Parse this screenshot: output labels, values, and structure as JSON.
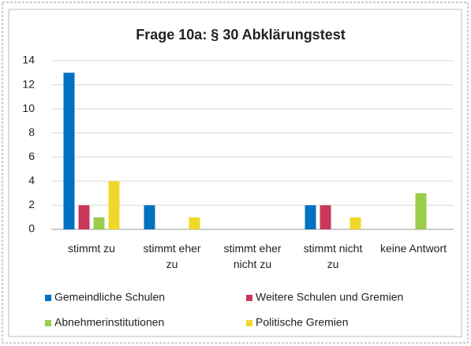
{
  "chart_data": {
    "type": "bar",
    "title": "Frage 10a: § 30 Abklärungstest",
    "categories": [
      "stimmt zu",
      "stimmt eher zu",
      "stimmt eher nicht zu",
      "stimmt nicht zu",
      "keine Antwort"
    ],
    "series": [
      {
        "name": "Gemeindliche Schulen",
        "color": "#0070c0",
        "values": [
          13,
          2,
          0,
          2,
          0
        ]
      },
      {
        "name": "Weitere Schulen und Gremien",
        "color": "#c8385a",
        "values": [
          2,
          0,
          0,
          2,
          0
        ]
      },
      {
        "name": "Abnehmerinstitutionen",
        "color": "#9acd4a",
        "values": [
          1,
          0,
          0,
          0,
          3
        ]
      },
      {
        "name": "Politische Gremien",
        "color": "#f0d829",
        "values": [
          4,
          1,
          0,
          1,
          0
        ]
      }
    ],
    "ylim": [
      0,
      14
    ],
    "yticks": [
      0,
      2,
      4,
      6,
      8,
      10,
      12,
      14
    ],
    "grid": true,
    "legend": "bottom"
  }
}
